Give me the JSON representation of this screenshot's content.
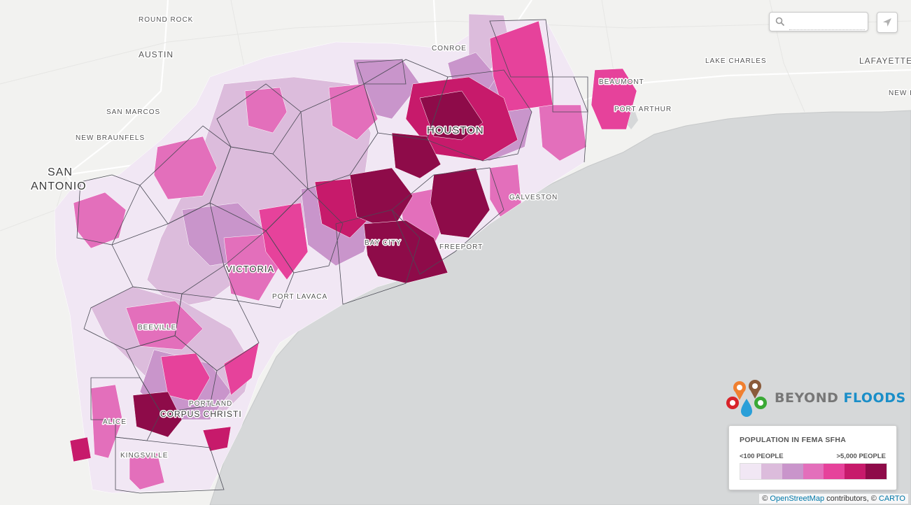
{
  "map": {
    "colors": {
      "land": "#f2f2f0",
      "water": "#d6d8d9",
      "coast_line": "#c6c8c9",
      "roads": "#ffffff",
      "boundary": "#4a4a55",
      "class_1": "#f1e7f4",
      "class_2": "#dcbcdc",
      "class_3": "#c995cb",
      "class_4": "#e36fbb",
      "class_5": "#e6429b",
      "class_6": "#c71a6b",
      "class_7": "#8e0b49"
    },
    "places": {
      "round_rock": "ROUND ROCK",
      "austin": "AUSTIN",
      "san_marcos": "SAN MARCOS",
      "new_braunfels": "NEW BRAUNFELS",
      "san_antonio_1": "SAN",
      "san_antonio_2": "ANTONIO",
      "conroe": "CONROE",
      "houston": "HOUSTON",
      "beaumont": "BEAUMONT",
      "port_arthur": "PORT ARTHUR",
      "lake_charles": "LAKE CHARLES",
      "lafayette": "LAFAYETTE",
      "new_iberia": "NEW I",
      "galveston": "GALVESTON",
      "freeport": "FREEPORT",
      "bay_city": "BAY CITY",
      "victoria": "VICTORIA",
      "port_lavaca": "PORT LAVACA",
      "beeville": "BEEVILLE",
      "portland": "PORTLAND",
      "corpus_christi": "CORPUS CHRISTI",
      "alice": "ALICE",
      "kingsville": "KINGSVILLE"
    }
  },
  "search": {
    "placeholder": "",
    "value": "",
    "icon": "search-icon"
  },
  "locate_button": {
    "icon": "navigation-arrow-icon"
  },
  "logo": {
    "word1": "BEYOND",
    "word2": "FLOODS",
    "color1": "#777777",
    "color2": "#1a8ec8"
  },
  "legend": {
    "title": "POPULATION IN FEMA SFHA",
    "min_label": "<100 PEOPLE",
    "max_label": ">5,000 PEOPLE",
    "colors": [
      "#f1e7f4",
      "#dcbcdc",
      "#c995cb",
      "#e36fbb",
      "#e6429b",
      "#c71a6b",
      "#8e0b49"
    ]
  },
  "attribution": {
    "prefix": "©",
    "osm": "OpenStreetMap",
    "middle": "contributors, ©",
    "carto": "CARTO"
  }
}
